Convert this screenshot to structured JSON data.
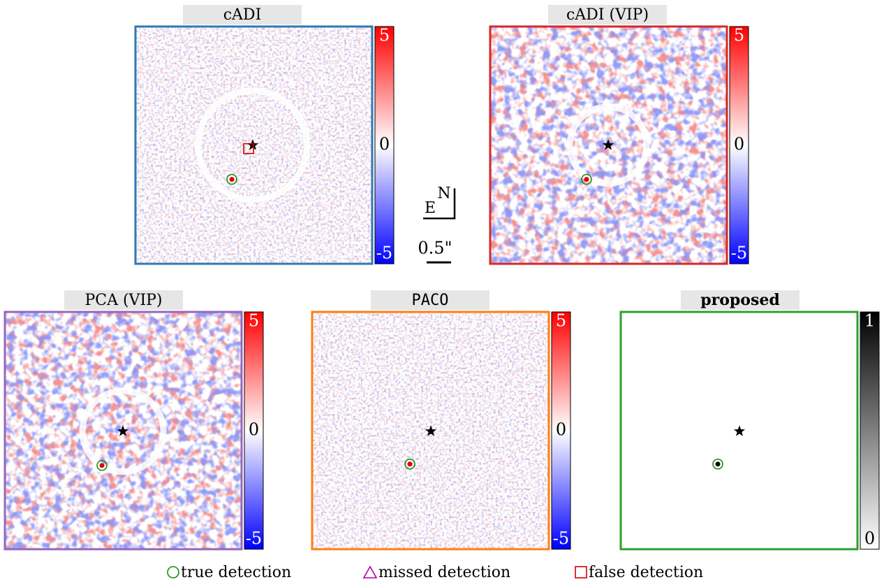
{
  "panels": [
    {
      "title": "cADI",
      "colorbar_labels": [
        5,
        0,
        -5
      ]
    },
    {
      "title": "cADI (VIP)",
      "colorbar_labels": [
        5,
        0,
        -5
      ]
    },
    {
      "title": "PCA (VIP)",
      "colorbar_labels": [
        5,
        0,
        -5
      ]
    },
    {
      "title": "PACO",
      "colorbar_labels": [
        5,
        0,
        -5
      ]
    },
    {
      "title": "proposed",
      "colorbar_labels": [
        1,
        0
      ]
    }
  ],
  "compass": {
    "north": "N",
    "east": "E"
  },
  "scale_bar": "0.5\"",
  "legend": [
    "true detection",
    "missed detection",
    "false detection"
  ]
}
